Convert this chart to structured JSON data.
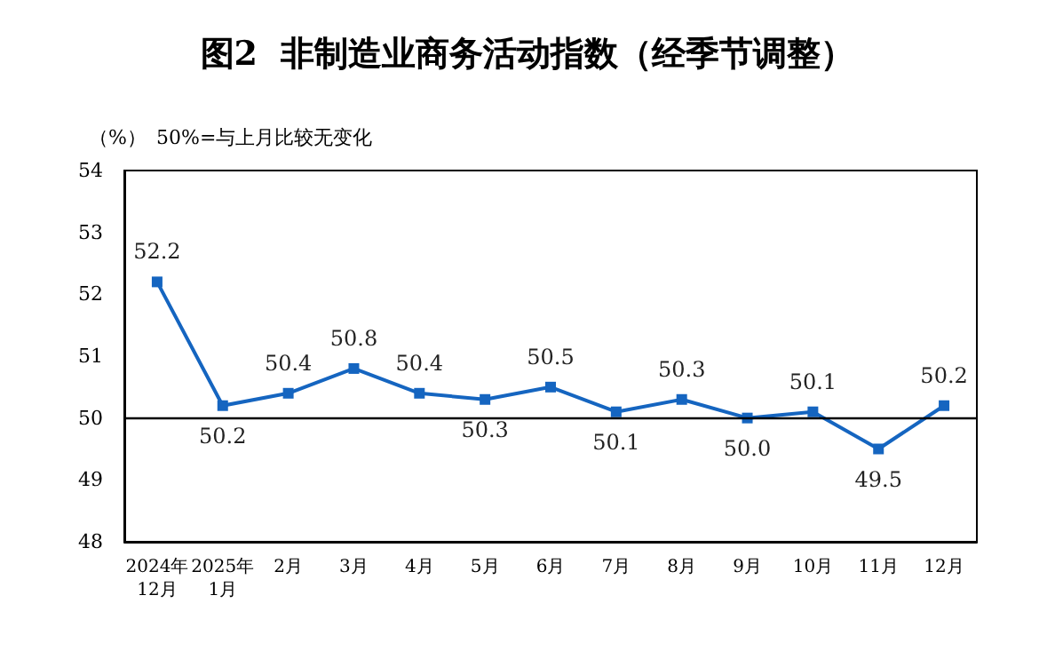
{
  "chart_data": {
    "type": "line",
    "title": "图2  非制造业商务活动指数（经季节调整）",
    "ylabel": "（%）",
    "annotations": [
      "50%=与上月比较无变化"
    ],
    "categories": [
      "2024年\n12月",
      "2025年\n1月",
      "2月",
      "3月",
      "4月",
      "5月",
      "6月",
      "7月",
      "8月",
      "9月",
      "10月",
      "11月",
      "12月"
    ],
    "series": [
      {
        "color": "#1565c0",
        "values": [
          52.2,
          50.2,
          50.4,
          50.8,
          50.4,
          50.3,
          50.5,
          50.1,
          50.3,
          50.0,
          50.1,
          49.5,
          50.2
        ],
        "value_labels": [
          "52.2",
          "50.2",
          "50.4",
          "50.8",
          "50.4",
          "50.3",
          "50.5",
          "50.1",
          "50.3",
          "50.0",
          "50.1",
          "49.5",
          "50.2"
        ]
      }
    ],
    "ylim": [
      48,
      54
    ],
    "yticks": [
      48,
      49,
      50,
      51,
      52,
      53,
      54
    ],
    "grid": false,
    "marker": "square",
    "line_style": "solid",
    "ref_lines": [
      {
        "axis": "y",
        "value": 50,
        "color": "#000000"
      }
    ]
  }
}
